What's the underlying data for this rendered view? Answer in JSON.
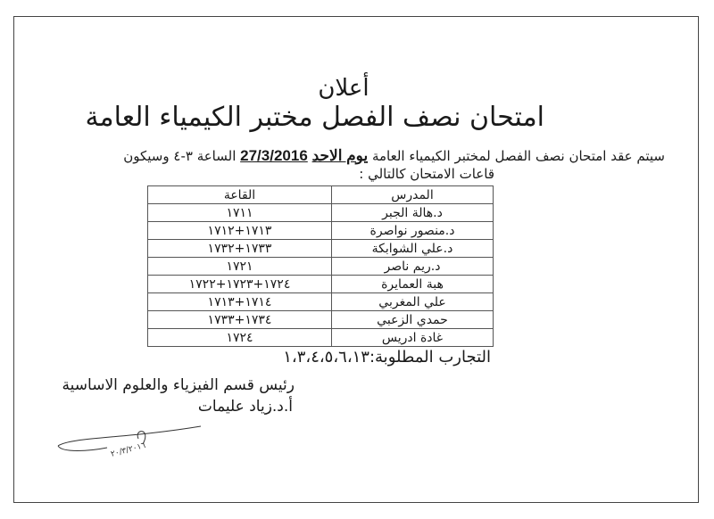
{
  "title": "أعلان",
  "subtitle": "امتحان نصف الفصل مختبر الكيمياء العامة",
  "intro": {
    "before": "سيتم عقد امتحان نصف الفصل لمختبر الكيمياء العامة ",
    "day": "يوم الاحد",
    "date": "27/3/2016",
    "after": " الساعة ٣-٤ وسيكون",
    "line2": "قاعات الامتحان كالتالي :"
  },
  "table": {
    "headers": {
      "teacher": "المدرس",
      "room": "القاعة"
    },
    "rows": [
      {
        "teacher": "د.هالة الجبر",
        "room": "١٧١١"
      },
      {
        "teacher": "د.منصور نواصرة",
        "room": "١٧١٣+١٧١٢"
      },
      {
        "teacher": "د.علي الشوابكة",
        "room": "١٧٣٣+١٧٣٢"
      },
      {
        "teacher": "د.ريم ناصر",
        "room": "١٧٢١"
      },
      {
        "teacher": "هبة العمايرة",
        "room": "١٧٢٤+١٧٢٣+١٧٢٢"
      },
      {
        "teacher": "علي المغربي",
        "room": "١٧١٤+١٧١٣"
      },
      {
        "teacher": "حمدي الزعبي",
        "room": "١٧٣٤+١٧٣٣"
      },
      {
        "teacher": "غادة ادريس",
        "room": "١٧٢٤"
      }
    ]
  },
  "experiments": "التجارب المطلوبة:١،٣،٤،٥،٦،١٣",
  "signature": {
    "position": "رئيس قسم الفيزياء والعلوم الاساسية",
    "name": "أ.د.زياد عليمات",
    "handwritten_date": "٢٠/٣/٢٠١٦"
  }
}
